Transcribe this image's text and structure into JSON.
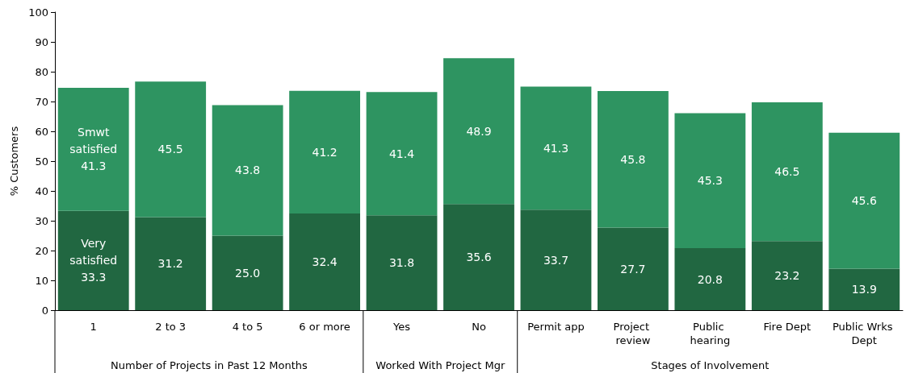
{
  "chart_data": {
    "type": "bar",
    "stacked": true,
    "ylabel": "% Customers",
    "categories": [
      "1",
      "2 to 3",
      "4 to 5",
      "6 or more",
      "Yes",
      "No",
      "Permit app",
      "Project review",
      "Public hearing",
      "Fire Dept",
      "Public Wrks Dept"
    ],
    "series": [
      {
        "name": "Very satisfied",
        "color": "#216741",
        "values": [
          33.3,
          31.2,
          25.0,
          32.4,
          31.8,
          35.6,
          33.7,
          27.7,
          20.8,
          23.2,
          13.9
        ],
        "value_labels": [
          "33.3",
          "31.2",
          "25.0",
          "32.4",
          "31.8",
          "35.6",
          "33.7",
          "27.7",
          "20.8",
          "23.2",
          "13.9"
        ]
      },
      {
        "name": "Smwt satisfied",
        "color": "#2e9461",
        "values": [
          41.3,
          45.5,
          43.8,
          41.2,
          41.4,
          48.9,
          41.3,
          45.8,
          45.3,
          46.5,
          45.6
        ],
        "value_labels": [
          "41.3",
          "45.5",
          "43.8",
          "41.2",
          "41.4",
          "48.9",
          "41.3",
          "45.8",
          "45.3",
          "46.5",
          "45.6"
        ]
      }
    ],
    "annotations": [
      "Number of Projects in Past 12 Months",
      "Worked With Project Mgr",
      "Stages of Involvement"
    ],
    "ylim": [
      0,
      100
    ],
    "yticks": [
      0,
      10,
      20,
      30,
      40,
      50,
      60,
      70,
      80,
      90,
      100
    ],
    "grid": false,
    "legend": false
  }
}
